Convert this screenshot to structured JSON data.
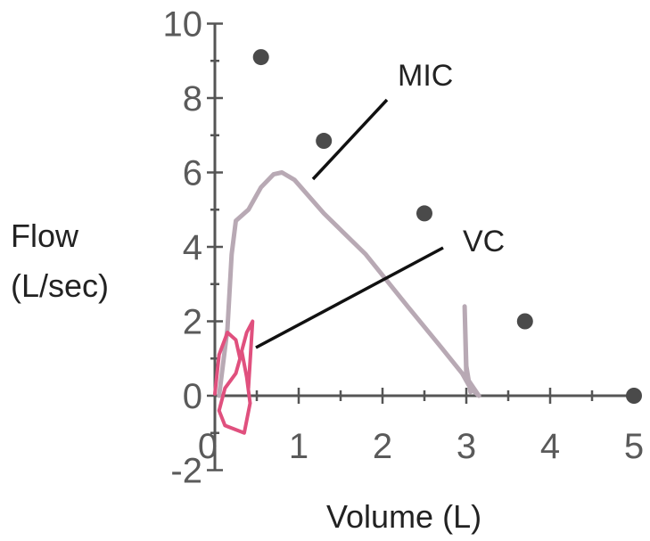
{
  "chart_data": {
    "type": "line",
    "title": "",
    "xlabel": "Volume (L)",
    "ylabel_lines": [
      "Flow",
      "(L/sec)"
    ],
    "xlim": [
      0,
      5
    ],
    "ylim": [
      -2,
      10
    ],
    "x_ticks": [
      0,
      1,
      2,
      3,
      4,
      5
    ],
    "x_tick_labels": [
      "0",
      "1",
      "2",
      "3",
      "4",
      "5"
    ],
    "y_ticks": [
      -2,
      0,
      2,
      4,
      6,
      8,
      10
    ],
    "y_tick_labels": [
      "-2",
      "0",
      "2",
      "4",
      "6",
      "8",
      "10"
    ],
    "grid": false,
    "series": [
      {
        "key": "mic",
        "color": "#b8a9b4",
        "x": [
          0.05,
          0.15,
          0.2,
          0.25,
          0.4,
          0.55,
          0.7,
          0.8,
          0.95,
          1.3,
          1.8,
          2.3,
          2.7,
          2.95,
          3.05,
          3.1,
          3.15,
          3.0,
          2.98,
          3.0,
          3.05
        ],
        "y": [
          0,
          1.8,
          3.8,
          4.7,
          5.0,
          5.6,
          5.95,
          6.0,
          5.8,
          4.9,
          3.8,
          2.4,
          1.3,
          0.6,
          0.2,
          0.1,
          0.0,
          0.5,
          2.4,
          0.8,
          0.1
        ]
      },
      {
        "key": "vc",
        "color": "#e0507e",
        "x": [
          0.0,
          0.05,
          0.15,
          0.25,
          0.3,
          0.25,
          0.12,
          0.05,
          0.12,
          0.35,
          0.42,
          0.38,
          0.32,
          0.38,
          0.45,
          0.4
        ],
        "y": [
          0.05,
          1.1,
          1.7,
          1.5,
          1.0,
          0.6,
          0.2,
          -0.4,
          -0.8,
          -1.0,
          -0.2,
          0.5,
          1.2,
          1.7,
          2.0,
          0.2
        ]
      }
    ],
    "markers": {
      "color": "#4a4a4a",
      "points": [
        {
          "x": 0.55,
          "y": 9.1
        },
        {
          "x": 1.3,
          "y": 6.85
        },
        {
          "x": 2.5,
          "y": 4.9
        },
        {
          "x": 3.7,
          "y": 2.0
        },
        {
          "x": 5.0,
          "y": 0.0
        }
      ]
    },
    "annotations": [
      {
        "text": "MIC",
        "target": {
          "x": 1.0,
          "y": 5.9
        }
      },
      {
        "text": "VC",
        "target": {
          "x": 0.45,
          "y": 1.3
        }
      }
    ]
  }
}
